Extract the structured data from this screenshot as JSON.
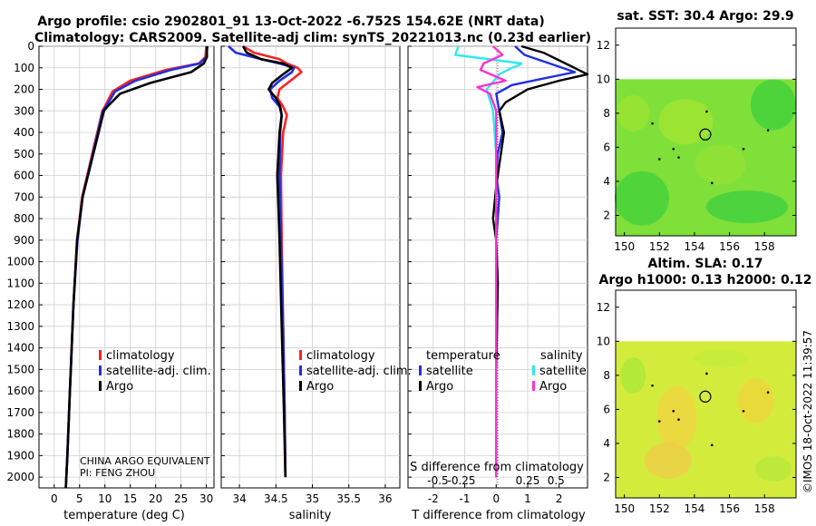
{
  "header": {
    "line1": "Argo profile: csio 2902801_91 13-Oct-2022 -6.752S 154.62E (NRT data)",
    "line2": "Climatology: CARS2009. Satellite-adj clim: synTS_20221013.nc (0.23d earlier)"
  },
  "colors": {
    "climatology": "#ff2020",
    "satellite": "#2030e0",
    "argo": "#000000",
    "t_sat_diff": "#2030e0",
    "s_sat_diff": "#30e8ee",
    "s_argo_diff": "#ff30d0"
  },
  "credit": {
    "line1": "CHINA ARGO EQUIVALENT",
    "line2": "PI: FENG ZHOU"
  },
  "timestamp": "©IMOS 18-Oct-2022 11:39:57",
  "chart_data": [
    {
      "id": "temperature",
      "type": "line",
      "xlabel": "temperature (deg C)",
      "xlim": [
        -3,
        31.5
      ],
      "xticks": [
        0,
        5,
        10,
        15,
        20,
        25,
        30
      ],
      "xtick_labels": [
        "0",
        "5",
        "10",
        "15",
        "20",
        "25",
        "30"
      ],
      "ylim": [
        2050,
        0
      ],
      "yticks": [
        0,
        100,
        200,
        300,
        400,
        500,
        600,
        700,
        800,
        900,
        1000,
        1100,
        1200,
        1300,
        1400,
        1500,
        1600,
        1700,
        1800,
        1900,
        2000
      ],
      "ytick_labels": [
        "0",
        "100",
        "200",
        "300",
        "400",
        "500",
        "600",
        "700",
        "800",
        "900",
        "1000",
        "1100",
        "1200",
        "1300",
        "1400",
        "1500",
        "1600",
        "1700",
        "1800",
        "1900",
        "2000"
      ],
      "legend": [
        "climatology",
        "satellite-adj. clim.",
        "Argo"
      ],
      "series": [
        {
          "name": "climatology",
          "x": [
            30,
            29.8,
            28.5,
            22,
            15,
            11.5,
            10,
            9.5,
            7.5,
            5.5,
            4.5,
            3.8,
            3.1,
            2.6,
            2.3
          ],
          "y": [
            0,
            50,
            80,
            110,
            160,
            210,
            280,
            300,
            500,
            700,
            900,
            1200,
            1600,
            1900,
            2050
          ]
        },
        {
          "name": "satellite-adj. clim.",
          "x": [
            30.2,
            30,
            28.7,
            23,
            16,
            12,
            10.2,
            9.6,
            7.6,
            5.6,
            4.6,
            3.8,
            3.1,
            2.6,
            2.3
          ],
          "y": [
            0,
            50,
            80,
            110,
            160,
            210,
            280,
            300,
            500,
            700,
            900,
            1200,
            1600,
            1900,
            2050
          ]
        },
        {
          "name": "Argo",
          "x": [
            30.1,
            30.1,
            29.5,
            27,
            19,
            13,
            10.5,
            9.8,
            7.7,
            5.6,
            4.5,
            3.8,
            3.1,
            2.6,
            2.3
          ],
          "y": [
            0,
            50,
            80,
            120,
            170,
            220,
            280,
            300,
            500,
            700,
            900,
            1200,
            1600,
            1900,
            2050
          ]
        }
      ]
    },
    {
      "id": "salinity",
      "type": "line",
      "xlabel": "salinity",
      "xlim": [
        33.75,
        36.2
      ],
      "xticks": [
        34,
        34.5,
        35,
        35.5,
        36
      ],
      "xtick_labels": [
        "34",
        "34.5",
        "35",
        "35.5",
        "36"
      ],
      "ylim": [
        2050,
        0
      ],
      "legend": [
        "climatology",
        "satellite-adj. clim.",
        "Argo"
      ],
      "series": [
        {
          "name": "climatology",
          "x": [
            34.05,
            34.2,
            34.55,
            34.65,
            34.8,
            34.85,
            34.7,
            34.55,
            34.52,
            34.6,
            34.65,
            34.6,
            34.57,
            34.58,
            34.6,
            34.62,
            34.63
          ],
          "y": [
            0,
            30,
            60,
            80,
            100,
            120,
            160,
            200,
            240,
            280,
            320,
            400,
            600,
            900,
            1300,
            1700,
            2000
          ]
        },
        {
          "name": "satellite-adj. clim.",
          "x": [
            33.85,
            33.95,
            34.3,
            34.55,
            34.75,
            34.72,
            34.55,
            34.42,
            34.45,
            34.55,
            34.58,
            34.56,
            34.55,
            34.57,
            34.6,
            34.62,
            34.63
          ],
          "y": [
            0,
            30,
            60,
            80,
            100,
            120,
            160,
            200,
            240,
            280,
            320,
            400,
            600,
            900,
            1300,
            1700,
            2000
          ]
        },
        {
          "name": "Argo",
          "x": [
            34.05,
            34.1,
            34.3,
            34.6,
            34.72,
            34.6,
            34.45,
            34.4,
            34.5,
            34.56,
            34.58,
            34.55,
            34.52,
            34.55,
            34.58,
            34.61,
            34.63
          ],
          "y": [
            0,
            30,
            60,
            80,
            100,
            130,
            170,
            200,
            240,
            280,
            320,
            400,
            600,
            900,
            1300,
            1700,
            2000
          ]
        }
      ]
    },
    {
      "id": "differences",
      "type": "line",
      "xlabel": "T difference from climatology",
      "xlabel_top": "S difference from climatology",
      "xlim": [
        -2.8,
        2.9
      ],
      "xticks": [
        -2,
        -1,
        0,
        1,
        2
      ],
      "xtick_labels": [
        "-2",
        "-1",
        "0",
        "1",
        "2"
      ],
      "s_ticks_pos": [
        -1.85,
        -1.1,
        1.0,
        1.9
      ],
      "s_tick_labels": [
        "-0.5",
        "-0.25",
        "0.25",
        "0.5"
      ],
      "ylim": [
        2050,
        0
      ],
      "legend_temperature": {
        "title": "temperature",
        "items": [
          "satellite",
          "Argo"
        ]
      },
      "legend_salinity": {
        "title": "salinity",
        "items": [
          "satellite",
          "Argo"
        ]
      },
      "series": [
        {
          "name": "T satellite",
          "x": [
            0.6,
            0.9,
            2.5,
            1.5,
            0.5,
            0,
            0.1,
            0.2,
            0.05,
            0,
            0.1,
            0.05,
            0,
            0.05,
            0,
            0
          ],
          "y": [
            0,
            40,
            120,
            150,
            180,
            220,
            300,
            400,
            500,
            600,
            700,
            800,
            900,
            1100,
            1500,
            2000
          ]
        },
        {
          "name": "T Argo",
          "x": [
            0.8,
            1.5,
            2.9,
            2.0,
            1.0,
            0.3,
            0.1,
            0.25,
            0.1,
            0,
            -0.1,
            0,
            0.05,
            0,
            0
          ],
          "y": [
            0,
            30,
            130,
            160,
            200,
            260,
            300,
            400,
            550,
            650,
            800,
            900,
            1100,
            1500,
            2000
          ]
        },
        {
          "name": "S satellite",
          "x": [
            -1.2,
            -1.3,
            0.8,
            0.7,
            0.5,
            0.1,
            -0.3,
            -0.1,
            0,
            0,
            0
          ],
          "y": [
            0,
            40,
            80,
            90,
            100,
            130,
            200,
            300,
            500,
            1000,
            2000
          ]
        },
        {
          "name": "S Argo",
          "x": [
            -0.1,
            0.2,
            -0.4,
            -0.5,
            0.3,
            -0.6,
            -0.2,
            0,
            0,
            0
          ],
          "y": [
            0,
            40,
            80,
            110,
            160,
            190,
            220,
            300,
            600,
            2000
          ]
        }
      ]
    },
    {
      "id": "sst_map",
      "type": "heatmap",
      "title": "sat. SST: 30.4 Argo: 29.9",
      "xlim": [
        149.5,
        159.8
      ],
      "ylim": [
        0.8,
        13
      ],
      "xticks": [
        150,
        152,
        154,
        156,
        158
      ],
      "yticks": [
        2,
        4,
        6,
        8,
        10,
        12
      ],
      "data_ymax": 10,
      "marker": {
        "lon": 154.62,
        "lat": 6.752
      }
    },
    {
      "id": "sla_map",
      "type": "heatmap",
      "title_line1": "Altim. SLA: 0.17",
      "title_line2": "Argo h1000: 0.13 h2000: 0.12",
      "xlim": [
        149.5,
        159.8
      ],
      "ylim": [
        0.8,
        13
      ],
      "xticks": [
        150,
        152,
        154,
        156,
        158
      ],
      "yticks": [
        2,
        4,
        6,
        8,
        10,
        12
      ],
      "data_ymax": 10,
      "marker": {
        "lon": 154.62,
        "lat": 6.752
      }
    }
  ]
}
